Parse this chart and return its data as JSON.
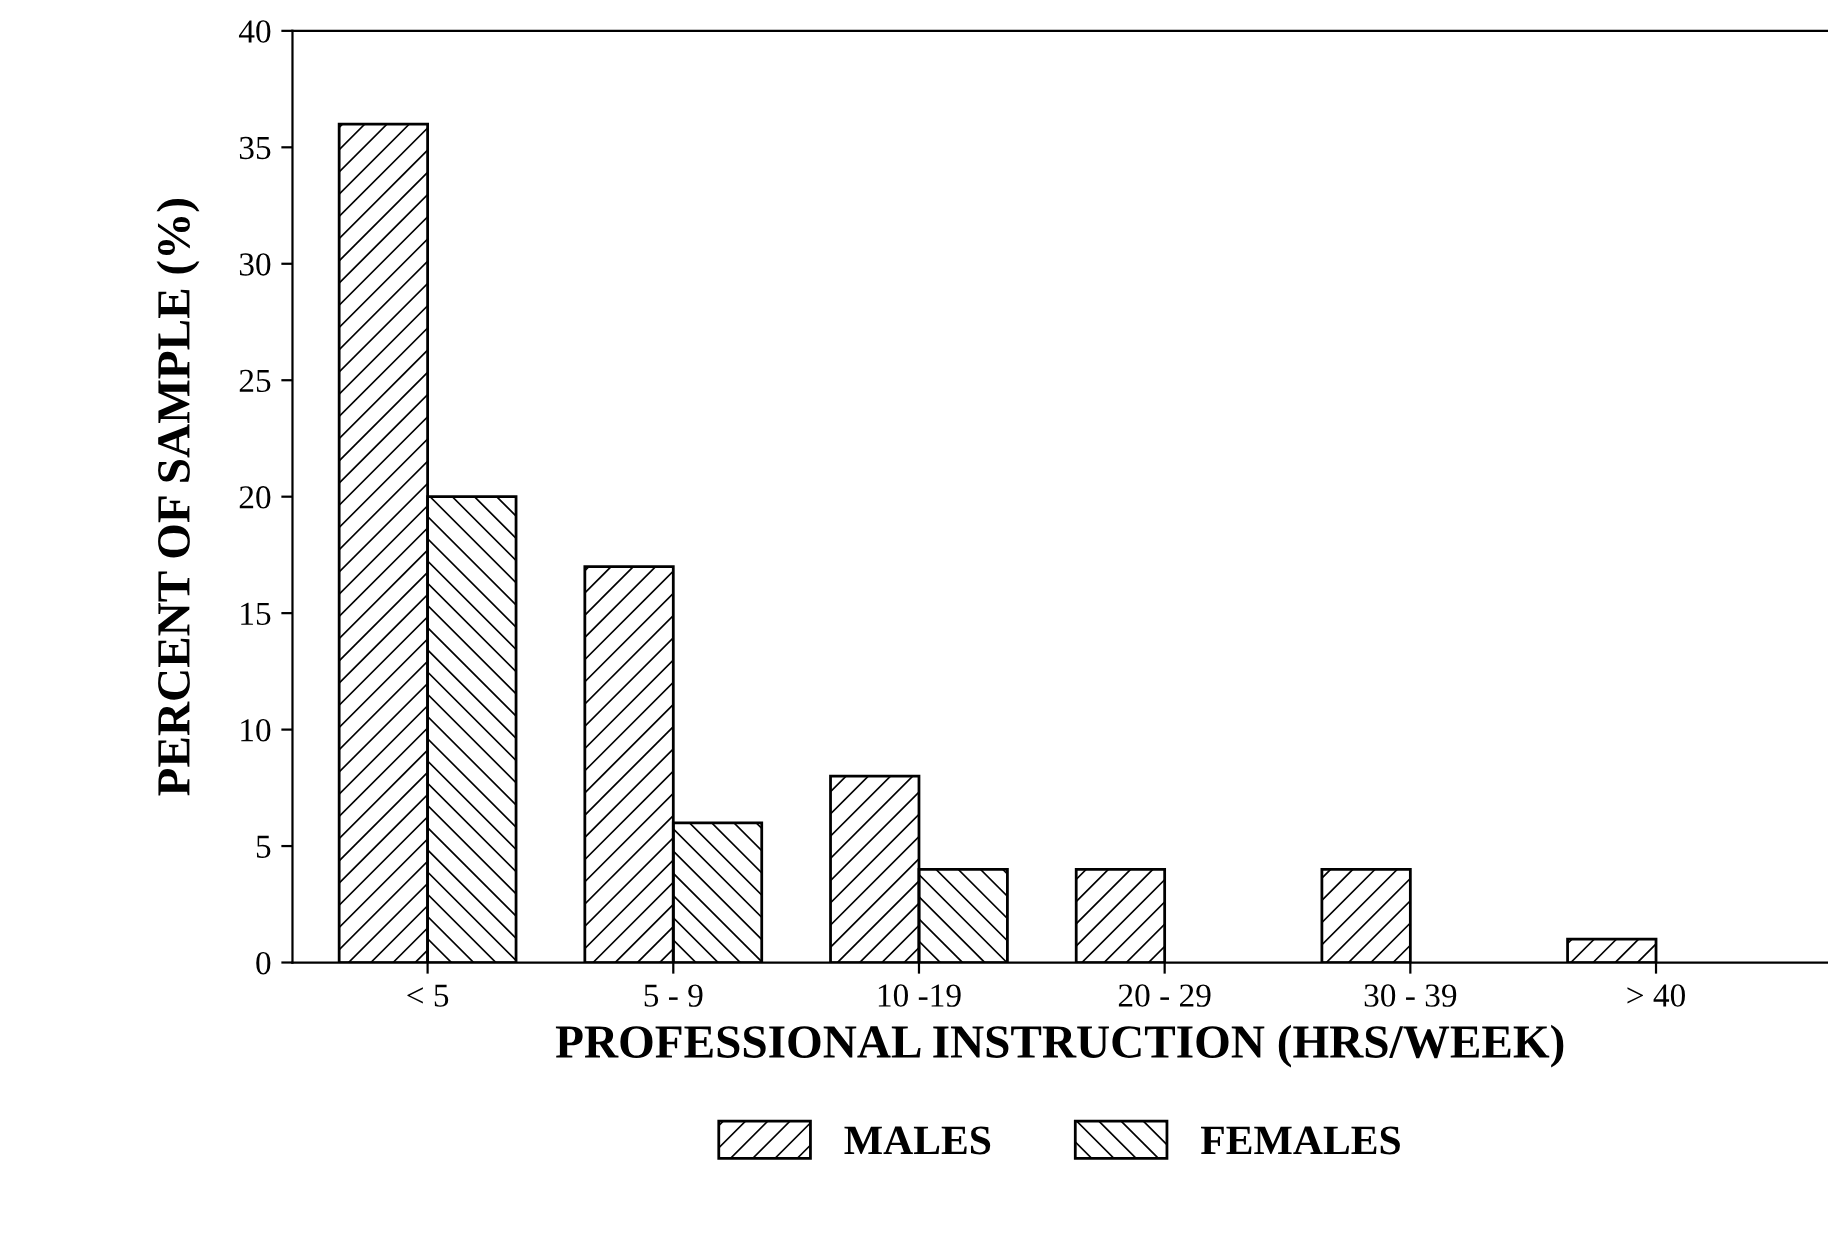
{
  "chart_data": {
    "type": "bar",
    "xlabel": "PROFESSIONAL INSTRUCTION (HRS/WEEK)",
    "ylabel": "PERCENT OF SAMPLE (%)",
    "categories": [
      "< 5",
      "5 - 9",
      "10 -19",
      "20 - 29",
      "30 - 39",
      "> 40"
    ],
    "series": [
      {
        "name": "MALES",
        "color": "#000000",
        "values": [
          36,
          17,
          8,
          4,
          4,
          1
        ]
      },
      {
        "name": "FEMALES",
        "color": "#000000",
        "values": [
          20,
          6,
          4,
          null,
          null,
          null
        ]
      }
    ],
    "ylim": [
      0,
      40
    ],
    "yticks": [
      0,
      5,
      10,
      15,
      20,
      25,
      30,
      35,
      40
    ],
    "grid": false,
    "legend": "bottom"
  }
}
